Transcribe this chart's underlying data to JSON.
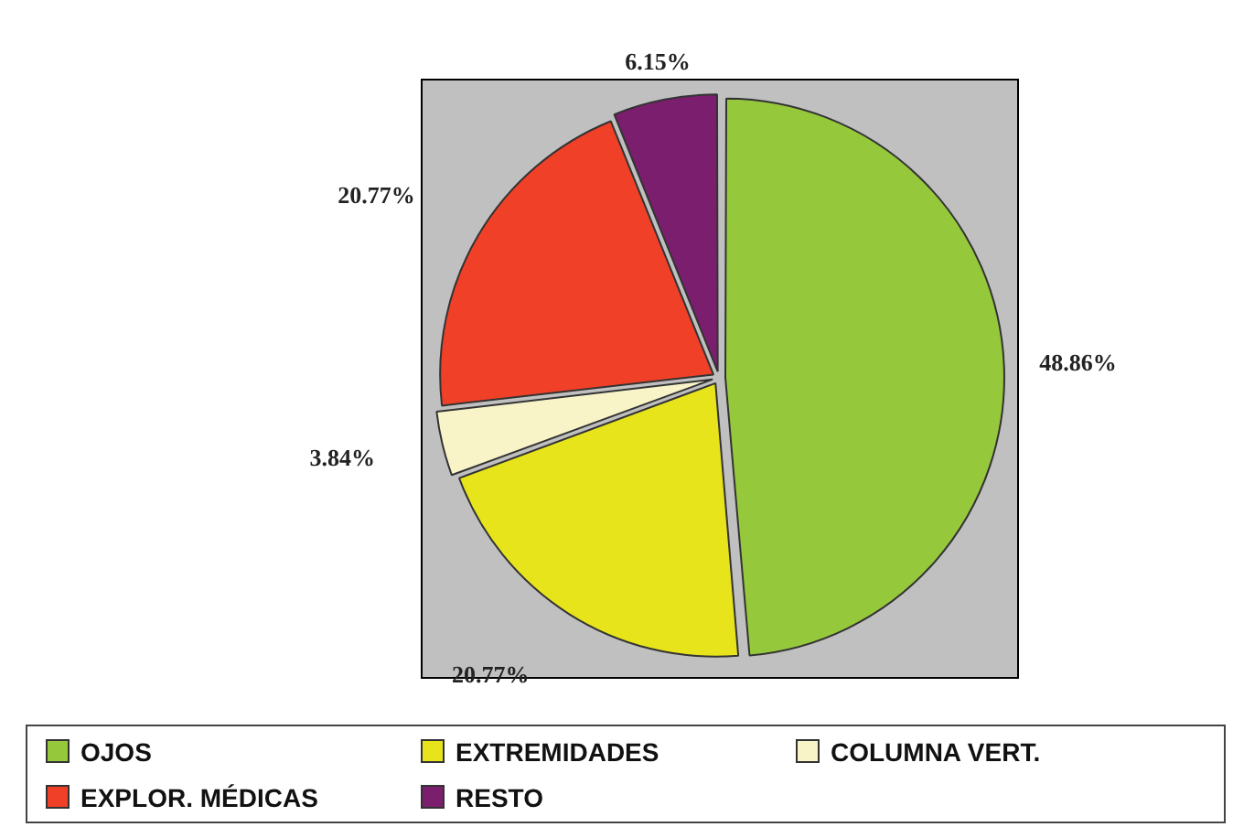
{
  "chart_data": {
    "type": "pie",
    "categories": [
      "OJOS",
      "EXTREMIDADES",
      "COLUMNA VERT.",
      "EXPLOR. MÉDICAS",
      "RESTO"
    ],
    "values": [
      48.86,
      20.77,
      3.84,
      20.77,
      6.15
    ],
    "colors": [
      "#96c83c",
      "#e8e41c",
      "#f8f4c8",
      "#f04028",
      "#7c1e6e"
    ],
    "value_labels": [
      "48.86%",
      "20.77%",
      "3.84%",
      "20.77%",
      "6.15%"
    ],
    "legend": "bottom"
  }
}
